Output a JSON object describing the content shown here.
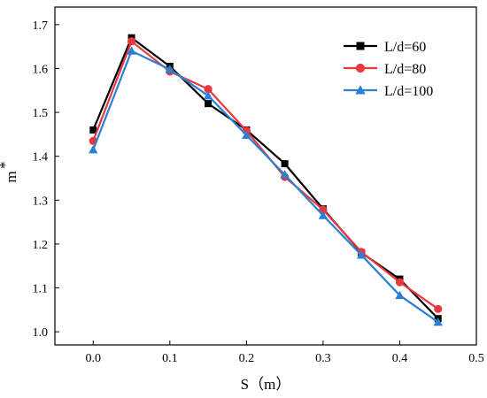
{
  "chart_data": {
    "type": "line",
    "xlabel": "S（m）",
    "ylabel": "m",
    "ylabel_superscript": "*",
    "xlim": [
      -0.05,
      0.5
    ],
    "ylim": [
      0.97,
      1.74
    ],
    "x_ticks": [
      "0.0",
      "0.1",
      "0.2",
      "0.3",
      "0.4",
      "0.5"
    ],
    "y_ticks": [
      "1.0",
      "1.1",
      "1.2",
      "1.3",
      "1.4",
      "1.5",
      "1.6",
      "1.7"
    ],
    "x": [
      0.0,
      0.05,
      0.1,
      0.15,
      0.2,
      0.25,
      0.3,
      0.35,
      0.4,
      0.45
    ],
    "grid": false,
    "legend_position": "top-right",
    "series": [
      {
        "name": "L/d=60",
        "color": "#000000",
        "marker": "square",
        "values": [
          1.46,
          1.67,
          1.605,
          1.52,
          1.46,
          1.383,
          1.28,
          1.18,
          1.12,
          1.03
        ]
      },
      {
        "name": "L/d=80",
        "color": "#e8383d",
        "marker": "circle",
        "values": [
          1.435,
          1.662,
          1.593,
          1.553,
          1.458,
          1.353,
          1.278,
          1.182,
          1.113,
          1.052
        ]
      },
      {
        "name": "L/d=100",
        "color": "#2b7fd4",
        "marker": "triangle",
        "values": [
          1.415,
          1.64,
          1.598,
          1.538,
          1.448,
          1.358,
          1.265,
          1.175,
          1.083,
          1.022
        ]
      }
    ]
  }
}
